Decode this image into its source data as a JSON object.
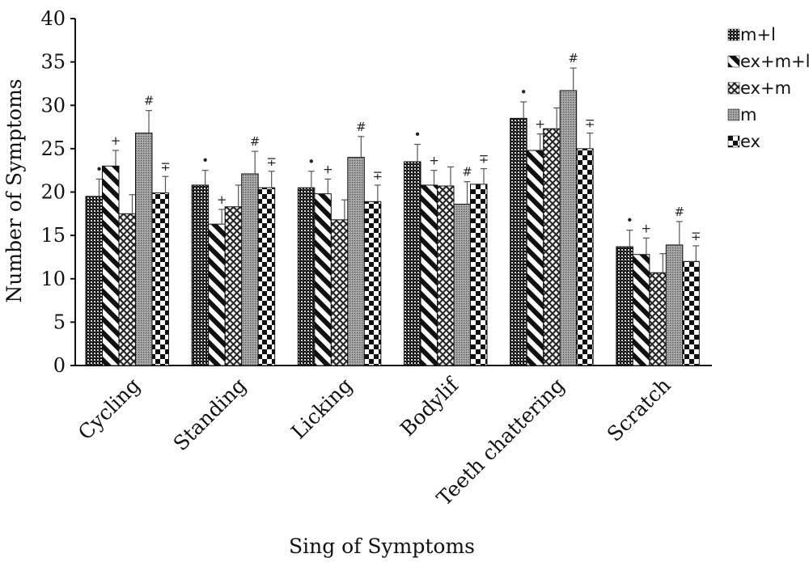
{
  "chart_data": {
    "type": "bar",
    "xlabel": "Sing of Symptoms",
    "ylabel": "Number of Symptoms",
    "ylim": [
      0,
      40
    ],
    "yticks": [
      "0",
      "5",
      "10",
      "15",
      "20",
      "25",
      "30",
      "35",
      "40"
    ],
    "grid": false,
    "legend_position": "top-right",
    "categories": [
      "Cycling",
      "Standing",
      "Licking",
      "Bodylif",
      "Teeth chattering",
      "Scratch"
    ],
    "series": [
      {
        "name": "m+l",
        "pattern": "dense-checker-dark",
        "values": [
          19.5,
          20.8,
          20.5,
          23.5,
          28.5,
          13.7
        ],
        "errors": [
          2.0,
          1.7,
          1.9,
          2.0,
          1.9,
          1.9
        ],
        "marker": "•"
      },
      {
        "name": "ex+m+l",
        "pattern": "diagonal-stripes",
        "values": [
          23.0,
          16.3,
          19.8,
          20.8,
          24.8,
          12.8
        ],
        "errors": [
          1.8,
          1.7,
          1.7,
          1.7,
          1.9,
          1.9
        ],
        "marker": "+"
      },
      {
        "name": "ex+m",
        "pattern": "crosshatch",
        "values": [
          17.5,
          18.3,
          16.8,
          20.7,
          27.3,
          10.7
        ],
        "errors": [
          2.2,
          2.5,
          2.3,
          2.2,
          2.4,
          2.2
        ],
        "marker": ""
      },
      {
        "name": "m",
        "pattern": "fine-grid-gray",
        "values": [
          26.8,
          22.1,
          24.0,
          18.6,
          31.7,
          13.9
        ],
        "errors": [
          2.6,
          2.6,
          2.4,
          2.6,
          2.6,
          2.7
        ],
        "marker": "#"
      },
      {
        "name": "ex",
        "pattern": "large-checker",
        "values": [
          19.9,
          20.5,
          18.9,
          20.9,
          25.0,
          12.0
        ],
        "errors": [
          1.9,
          1.9,
          1.9,
          1.8,
          1.8,
          1.8
        ],
        "marker": "∓"
      }
    ]
  }
}
